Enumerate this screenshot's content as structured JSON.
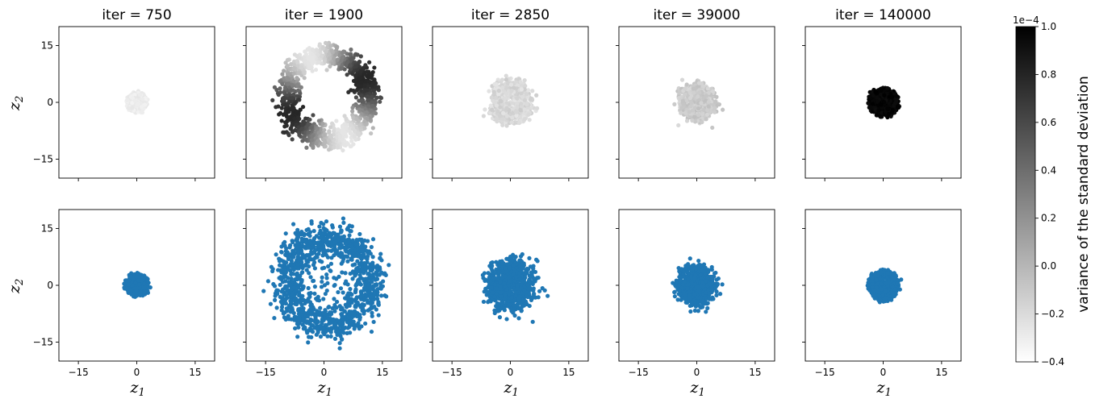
{
  "chart_data": [
    {
      "type": "scatter",
      "row": "top",
      "color_mode": "grayscale",
      "xlabel": "",
      "ylabel": "z_2",
      "ylabel_parts": {
        "base": "z",
        "sub": "2"
      },
      "xlim": [
        -20,
        20
      ],
      "ylim": [
        -20,
        20
      ],
      "xticks": [
        -15,
        0,
        15
      ],
      "yticks": [
        15,
        0,
        -15
      ],
      "panels": [
        {
          "title": "iter = 750",
          "shape": "disk",
          "center": [
            0,
            0
          ],
          "radius": 2.5,
          "width": 1.2,
          "value_range": [
            0.05,
            0.1
          ]
        },
        {
          "title": "iter = 1900",
          "shape": "ring",
          "center": [
            1,
            1.5
          ],
          "radius": 11,
          "width": 1.6,
          "value_range": [
            0.1,
            0.85
          ],
          "value_pattern": "angular"
        },
        {
          "title": "iter = 2850",
          "shape": "ring",
          "center": [
            0,
            0
          ],
          "radius": 4,
          "width": 1.3,
          "value_range": [
            0.1,
            0.2
          ]
        },
        {
          "title": "iter = 39000",
          "shape": "ring",
          "center": [
            0,
            0
          ],
          "radius": 3.3,
          "width": 1.2,
          "value_range": [
            0.15,
            0.25
          ]
        },
        {
          "title": "iter = 140000",
          "shape": "disk",
          "center": [
            0,
            0
          ],
          "radius": 3.8,
          "width": 1.2,
          "value_range": [
            0.95,
            1.0
          ]
        }
      ]
    },
    {
      "type": "scatter",
      "row": "bottom",
      "color": "#1f77b4",
      "xlabel": "z_1",
      "xlabel_parts": {
        "base": "z",
        "sub": "1"
      },
      "ylabel": "z_2",
      "ylabel_parts": {
        "base": "z",
        "sub": "2"
      },
      "xlim": [
        -20,
        20
      ],
      "ylim": [
        -20,
        20
      ],
      "xticks": [
        -15,
        0,
        15
      ],
      "yticks": [
        15,
        0,
        -15
      ],
      "panels": [
        {
          "shape": "disk",
          "center": [
            0,
            0
          ],
          "radius": 3,
          "width": 1.2
        },
        {
          "shape": "ring",
          "center": [
            1,
            1
          ],
          "radius": 11.5,
          "width": 2.2,
          "inner_scatter": true
        },
        {
          "shape": "ring",
          "center": [
            0,
            0
          ],
          "radius": 4.5,
          "width": 1.8
        },
        {
          "shape": "ring",
          "center": [
            0,
            0
          ],
          "radius": 3.5,
          "width": 1.4
        },
        {
          "shape": "disk",
          "center": [
            0,
            0
          ],
          "radius": 4,
          "width": 1.0
        }
      ]
    }
  ],
  "colorbar": {
    "label": "variance of the standard deviation",
    "scale_label": "1e−4",
    "ticks": [
      "1.0",
      "0.8",
      "0.6",
      "0.4",
      "0.2",
      "0.0",
      "−0.2",
      "−0.4"
    ],
    "range": [
      -0.4,
      1.0
    ],
    "colors": [
      "#ffffff",
      "#000000"
    ]
  }
}
